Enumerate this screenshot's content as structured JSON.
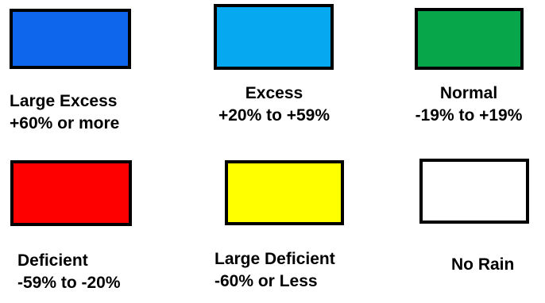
{
  "legend": {
    "items": [
      {
        "color": "#0e66ec",
        "line1": "Large Excess",
        "line2": "+60% or more"
      },
      {
        "color": "#06a8f0",
        "line1": "Excess",
        "line2": "+20% to +59%"
      },
      {
        "color": "#07a64a",
        "line1": "Normal",
        "line2": "-19% to +19%"
      },
      {
        "color": "#ff0000",
        "line1": "Deficient",
        "line2": "-59% to -20%"
      },
      {
        "color": "#ffff00",
        "line1": "Large Deficient",
        "line2": "-60% or Less"
      },
      {
        "color": "#ffffff",
        "line1": "No Rain"
      }
    ]
  }
}
